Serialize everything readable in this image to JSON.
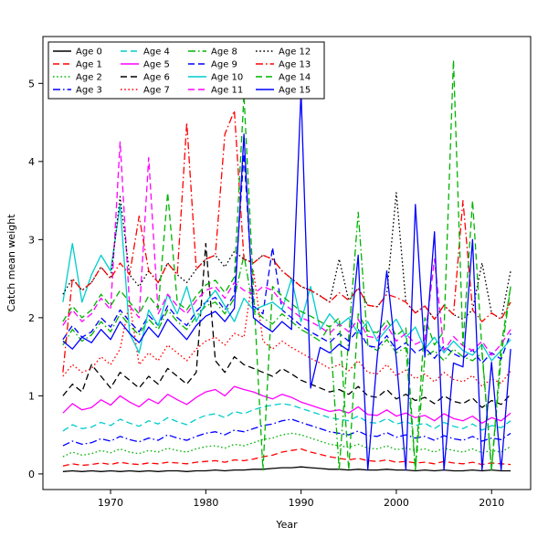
{
  "figure": {
    "background": "#ffffff",
    "frame_color": "#000000"
  },
  "chart_data": {
    "type": "line",
    "title": "",
    "xlabel": "Year",
    "ylabel": "Catch mean weight",
    "grid": false,
    "legend_position": "upper left",
    "legend_columns": 4,
    "xlim": [
      1962.9,
      2014.1
    ],
    "ylim": [
      -0.2,
      5.6
    ],
    "xticks": [
      1970,
      1980,
      1990,
      2000,
      2010
    ],
    "yticks": [
      0,
      1,
      2,
      3,
      4,
      5
    ],
    "x": [
      1965,
      1966,
      1967,
      1968,
      1969,
      1970,
      1971,
      1972,
      1973,
      1974,
      1975,
      1976,
      1977,
      1978,
      1979,
      1980,
      1981,
      1982,
      1983,
      1984,
      1985,
      1986,
      1987,
      1988,
      1989,
      1990,
      1991,
      1992,
      1993,
      1994,
      1995,
      1996,
      1997,
      1998,
      1999,
      2000,
      2001,
      2002,
      2003,
      2004,
      2005,
      2006,
      2007,
      2008,
      2009,
      2010,
      2011,
      2012
    ],
    "series": [
      {
        "name": "Age 0",
        "color": "#000000",
        "linestyle": "solid",
        "values": [
          0.03,
          0.04,
          0.03,
          0.04,
          0.03,
          0.04,
          0.03,
          0.04,
          0.03,
          0.04,
          0.03,
          0.04,
          0.04,
          0.03,
          0.04,
          0.04,
          0.05,
          0.04,
          0.05,
          0.05,
          0.06,
          0.06,
          0.07,
          0.08,
          0.08,
          0.09,
          0.08,
          0.07,
          0.06,
          0.06,
          0.05,
          0.06,
          0.05,
          0.05,
          0.06,
          0.05,
          0.05,
          0.04,
          0.05,
          0.04,
          0.05,
          0.04,
          0.04,
          0.05,
          0.04,
          0.05,
          0.04,
          0.04
        ]
      },
      {
        "name": "Age 1",
        "color": "#ff0000",
        "linestyle": "dashed",
        "values": [
          0.1,
          0.13,
          0.11,
          0.12,
          0.14,
          0.12,
          0.15,
          0.13,
          0.12,
          0.14,
          0.13,
          0.15,
          0.14,
          0.13,
          0.15,
          0.16,
          0.17,
          0.15,
          0.18,
          0.17,
          0.19,
          0.22,
          0.24,
          0.28,
          0.3,
          0.32,
          0.28,
          0.25,
          0.22,
          0.2,
          0.18,
          0.2,
          0.17,
          0.16,
          0.18,
          0.15,
          0.16,
          0.14,
          0.15,
          0.13,
          0.16,
          0.14,
          0.13,
          0.15,
          0.12,
          0.14,
          0.13,
          0.12
        ]
      },
      {
        "name": "Age 2",
        "color": "#00b300",
        "linestyle": "dotted",
        "values": [
          0.22,
          0.28,
          0.24,
          0.26,
          0.3,
          0.27,
          0.32,
          0.28,
          0.26,
          0.3,
          0.28,
          0.33,
          0.3,
          0.28,
          0.32,
          0.35,
          0.36,
          0.33,
          0.38,
          0.36,
          0.4,
          0.44,
          0.46,
          0.5,
          0.52,
          0.5,
          0.46,
          0.42,
          0.38,
          0.36,
          0.34,
          0.38,
          0.33,
          0.32,
          0.36,
          0.31,
          0.33,
          0.3,
          0.32,
          0.28,
          0.33,
          0.3,
          0.28,
          0.32,
          0.27,
          0.3,
          0.28,
          0.35
        ]
      },
      {
        "name": "Age 3",
        "color": "#0000ff",
        "linestyle": "dashdot",
        "values": [
          0.36,
          0.42,
          0.38,
          0.4,
          0.45,
          0.42,
          0.48,
          0.44,
          0.41,
          0.46,
          0.43,
          0.5,
          0.46,
          0.43,
          0.48,
          0.52,
          0.54,
          0.5,
          0.56,
          0.54,
          0.58,
          0.62,
          0.64,
          0.68,
          0.7,
          0.66,
          0.62,
          0.58,
          0.54,
          0.52,
          0.5,
          0.55,
          0.49,
          0.48,
          0.53,
          0.47,
          0.5,
          0.46,
          0.48,
          0.43,
          0.49,
          0.45,
          0.43,
          0.48,
          0.42,
          0.46,
          0.44,
          0.52
        ]
      },
      {
        "name": "Age 4",
        "color": "#00cccc",
        "linestyle": "dashed",
        "values": [
          0.55,
          0.63,
          0.58,
          0.6,
          0.66,
          0.62,
          0.7,
          0.65,
          0.61,
          0.68,
          0.64,
          0.72,
          0.67,
          0.63,
          0.7,
          0.75,
          0.77,
          0.72,
          0.8,
          0.77,
          0.82,
          0.86,
          0.88,
          0.9,
          0.88,
          0.84,
          0.8,
          0.76,
          0.72,
          0.7,
          0.68,
          0.74,
          0.66,
          0.65,
          0.71,
          0.64,
          0.67,
          0.62,
          0.65,
          0.58,
          0.66,
          0.61,
          0.58,
          0.64,
          0.56,
          0.62,
          0.59,
          0.68
        ]
      },
      {
        "name": "Age 5",
        "color": "#ff00ff",
        "linestyle": "solid",
        "values": [
          0.78,
          0.9,
          0.82,
          0.85,
          0.95,
          0.88,
          1.0,
          0.92,
          0.86,
          0.96,
          0.9,
          1.02,
          0.95,
          0.89,
          0.98,
          1.05,
          1.08,
          1.0,
          1.12,
          1.08,
          1.05,
          1.0,
          0.96,
          1.02,
          0.98,
          0.92,
          0.88,
          0.84,
          0.8,
          0.82,
          0.78,
          0.86,
          0.76,
          0.75,
          0.82,
          0.74,
          0.78,
          0.72,
          0.75,
          0.68,
          0.77,
          0.71,
          0.68,
          0.74,
          0.65,
          0.72,
          0.68,
          0.78
        ]
      },
      {
        "name": "Age 6",
        "color": "#000000",
        "linestyle": "dashed",
        "values": [
          1.0,
          1.15,
          1.05,
          1.4,
          1.25,
          1.1,
          1.3,
          1.2,
          1.1,
          1.25,
          1.15,
          1.35,
          1.25,
          1.15,
          1.3,
          2.95,
          1.45,
          1.3,
          1.5,
          1.4,
          1.35,
          1.3,
          1.25,
          1.35,
          1.28,
          1.2,
          1.15,
          1.1,
          1.05,
          1.08,
          1.02,
          1.12,
          1.0,
          0.98,
          1.08,
          0.96,
          1.02,
          0.94,
          0.98,
          0.9,
          1.0,
          0.93,
          0.9,
          0.97,
          0.85,
          0.94,
          0.89,
          1.02
        ]
      },
      {
        "name": "Age 7",
        "color": "#ff0000",
        "linestyle": "dotted",
        "values": [
          1.25,
          1.4,
          1.3,
          1.35,
          1.5,
          1.4,
          1.6,
          2.2,
          1.4,
          1.55,
          1.45,
          1.65,
          1.55,
          1.45,
          1.6,
          1.7,
          1.75,
          1.65,
          1.8,
          1.75,
          2.6,
          1.7,
          1.6,
          1.7,
          1.62,
          1.55,
          1.48,
          1.42,
          1.35,
          1.4,
          1.32,
          1.45,
          1.3,
          1.28,
          1.4,
          1.26,
          1.33,
          1.22,
          1.28,
          1.18,
          1.3,
          1.21,
          1.18,
          1.26,
          1.12,
          1.22,
          1.16,
          1.32
        ]
      },
      {
        "name": "Age 8",
        "color": "#00b300",
        "linestyle": "dashdot",
        "values": [
          1.65,
          1.85,
          1.7,
          1.78,
          1.95,
          1.82,
          2.05,
          1.9,
          1.78,
          1.98,
          1.85,
          2.1,
          1.95,
          1.85,
          2.02,
          2.15,
          2.2,
          2.05,
          2.25,
          2.8,
          2.1,
          2.0,
          1.92,
          2.05,
          1.95,
          1.85,
          1.78,
          1.7,
          1.9,
          0.05,
          1.75,
          3.35,
          1.65,
          1.58,
          1.72,
          1.55,
          1.62,
          0.05,
          1.5,
          1.58,
          1.45,
          1.6,
          1.5,
          1.45,
          1.55,
          0.05,
          1.5,
          2.4
        ]
      },
      {
        "name": "Age 9",
        "color": "#0000ff",
        "linestyle": "dashed",
        "values": [
          1.72,
          1.9,
          1.75,
          1.82,
          2.0,
          1.88,
          2.1,
          1.95,
          1.82,
          2.03,
          1.9,
          2.15,
          2.0,
          1.9,
          2.08,
          2.2,
          2.26,
          2.1,
          2.3,
          4.1,
          2.15,
          2.05,
          2.9,
          2.1,
          2.0,
          1.9,
          1.82,
          1.75,
          1.68,
          1.8,
          1.7,
          1.85,
          1.64,
          1.62,
          1.77,
          1.59,
          1.68,
          1.55,
          1.62,
          1.48,
          1.64,
          1.54,
          1.48,
          1.59,
          1.42,
          1.55,
          1.47,
          1.8
        ]
      },
      {
        "name": "Age 10",
        "color": "#00cccc",
        "linestyle": "solid",
        "values": [
          2.2,
          2.95,
          2.2,
          2.55,
          2.8,
          2.6,
          3.45,
          1.8,
          1.55,
          2.1,
          1.9,
          2.3,
          2.05,
          2.4,
          1.95,
          2.2,
          2.35,
          2.15,
          1.95,
          2.25,
          2.1,
          2.15,
          2.2,
          2.1,
          2.5,
          1.95,
          2.4,
          1.85,
          2.05,
          1.9,
          2.0,
          1.8,
          1.95,
          1.7,
          1.85,
          1.98,
          1.75,
          1.88,
          1.6,
          1.75,
          1.55,
          1.7,
          1.58,
          1.52,
          1.66,
          1.45,
          1.58,
          1.72
        ]
      },
      {
        "name": "Age 11",
        "color": "#ff00ff",
        "linestyle": "dashed",
        "values": [
          1.9,
          2.1,
          1.95,
          2.05,
          2.25,
          2.1,
          4.25,
          2.15,
          2.0,
          4.05,
          2.05,
          2.3,
          2.15,
          2.05,
          2.22,
          2.35,
          2.4,
          2.25,
          2.45,
          2.35,
          2.3,
          2.4,
          2.35,
          2.2,
          2.1,
          2.0,
          1.95,
          1.88,
          1.8,
          1.92,
          1.82,
          1.98,
          1.76,
          1.74,
          1.9,
          1.7,
          1.8,
          1.66,
          1.72,
          2.75,
          1.58,
          1.76,
          1.64,
          1.58,
          1.7,
          1.52,
          1.66,
          1.85
        ]
      },
      {
        "name": "Age 12",
        "color": "#000000",
        "linestyle": "dotted",
        "values": [
          2.3,
          2.5,
          2.35,
          2.45,
          2.65,
          2.5,
          3.55,
          2.55,
          2.4,
          2.6,
          2.45,
          2.7,
          2.55,
          2.45,
          2.62,
          2.75,
          2.8,
          2.65,
          2.85,
          2.75,
          2.7,
          2.8,
          2.75,
          2.6,
          2.5,
          2.4,
          2.35,
          2.28,
          2.2,
          2.75,
          2.22,
          2.38,
          2.16,
          2.14,
          2.3,
          3.6,
          2.2,
          2.06,
          2.15,
          1.98,
          2.16,
          2.04,
          1.98,
          2.1,
          2.7,
          2.06,
          1.98,
          2.6
        ]
      },
      {
        "name": "Age 13",
        "color": "#ff0000",
        "linestyle": "dashdot",
        "values": [
          1.3,
          2.5,
          2.35,
          2.45,
          2.65,
          2.5,
          2.7,
          2.55,
          3.3,
          2.6,
          2.45,
          2.7,
          2.55,
          4.5,
          2.62,
          2.75,
          2.8,
          4.35,
          4.65,
          2.75,
          2.7,
          2.8,
          2.75,
          2.6,
          2.5,
          2.4,
          2.35,
          2.28,
          2.2,
          2.32,
          2.22,
          2.38,
          2.16,
          2.14,
          2.3,
          2.26,
          2.2,
          2.06,
          2.15,
          1.98,
          2.16,
          2.04,
          3.5,
          2.1,
          1.95,
          2.06,
          1.98,
          2.2
        ]
      },
      {
        "name": "Age 14",
        "color": "#00b300",
        "linestyle": "dashed",
        "values": [
          1.95,
          2.15,
          2.0,
          2.1,
          2.3,
          2.15,
          2.35,
          2.2,
          2.05,
          2.28,
          2.12,
          3.6,
          2.2,
          2.1,
          2.28,
          2.42,
          2.48,
          2.32,
          2.52,
          4.85,
          2.38,
          0.05,
          2.4,
          2.28,
          2.18,
          2.08,
          2.02,
          1.95,
          1.88,
          2.0,
          0.05,
          2.05,
          1.83,
          1.81,
          1.97,
          1.77,
          1.87,
          0.05,
          2.0,
          1.65,
          1.83,
          5.3,
          1.65,
          3.5,
          1.58,
          0.05,
          1.64,
          2.4
        ]
      },
      {
        "name": "Age 15",
        "color": "#0000ff",
        "linestyle": "solid",
        "values": [
          1.7,
          1.6,
          1.75,
          1.68,
          1.85,
          1.72,
          1.95,
          1.8,
          1.68,
          1.88,
          1.75,
          1.98,
          1.85,
          1.72,
          1.9,
          2.02,
          2.08,
          1.95,
          2.12,
          4.35,
          2.0,
          1.9,
          1.82,
          1.95,
          1.85,
          4.9,
          1.1,
          1.62,
          1.55,
          1.66,
          1.58,
          2.8,
          0.05,
          1.5,
          2.6,
          1.47,
          0.05,
          3.45,
          1.5,
          3.1,
          0.05,
          1.42,
          1.37,
          3.0,
          0.05,
          1.43,
          0.05,
          1.6
        ]
      }
    ]
  }
}
